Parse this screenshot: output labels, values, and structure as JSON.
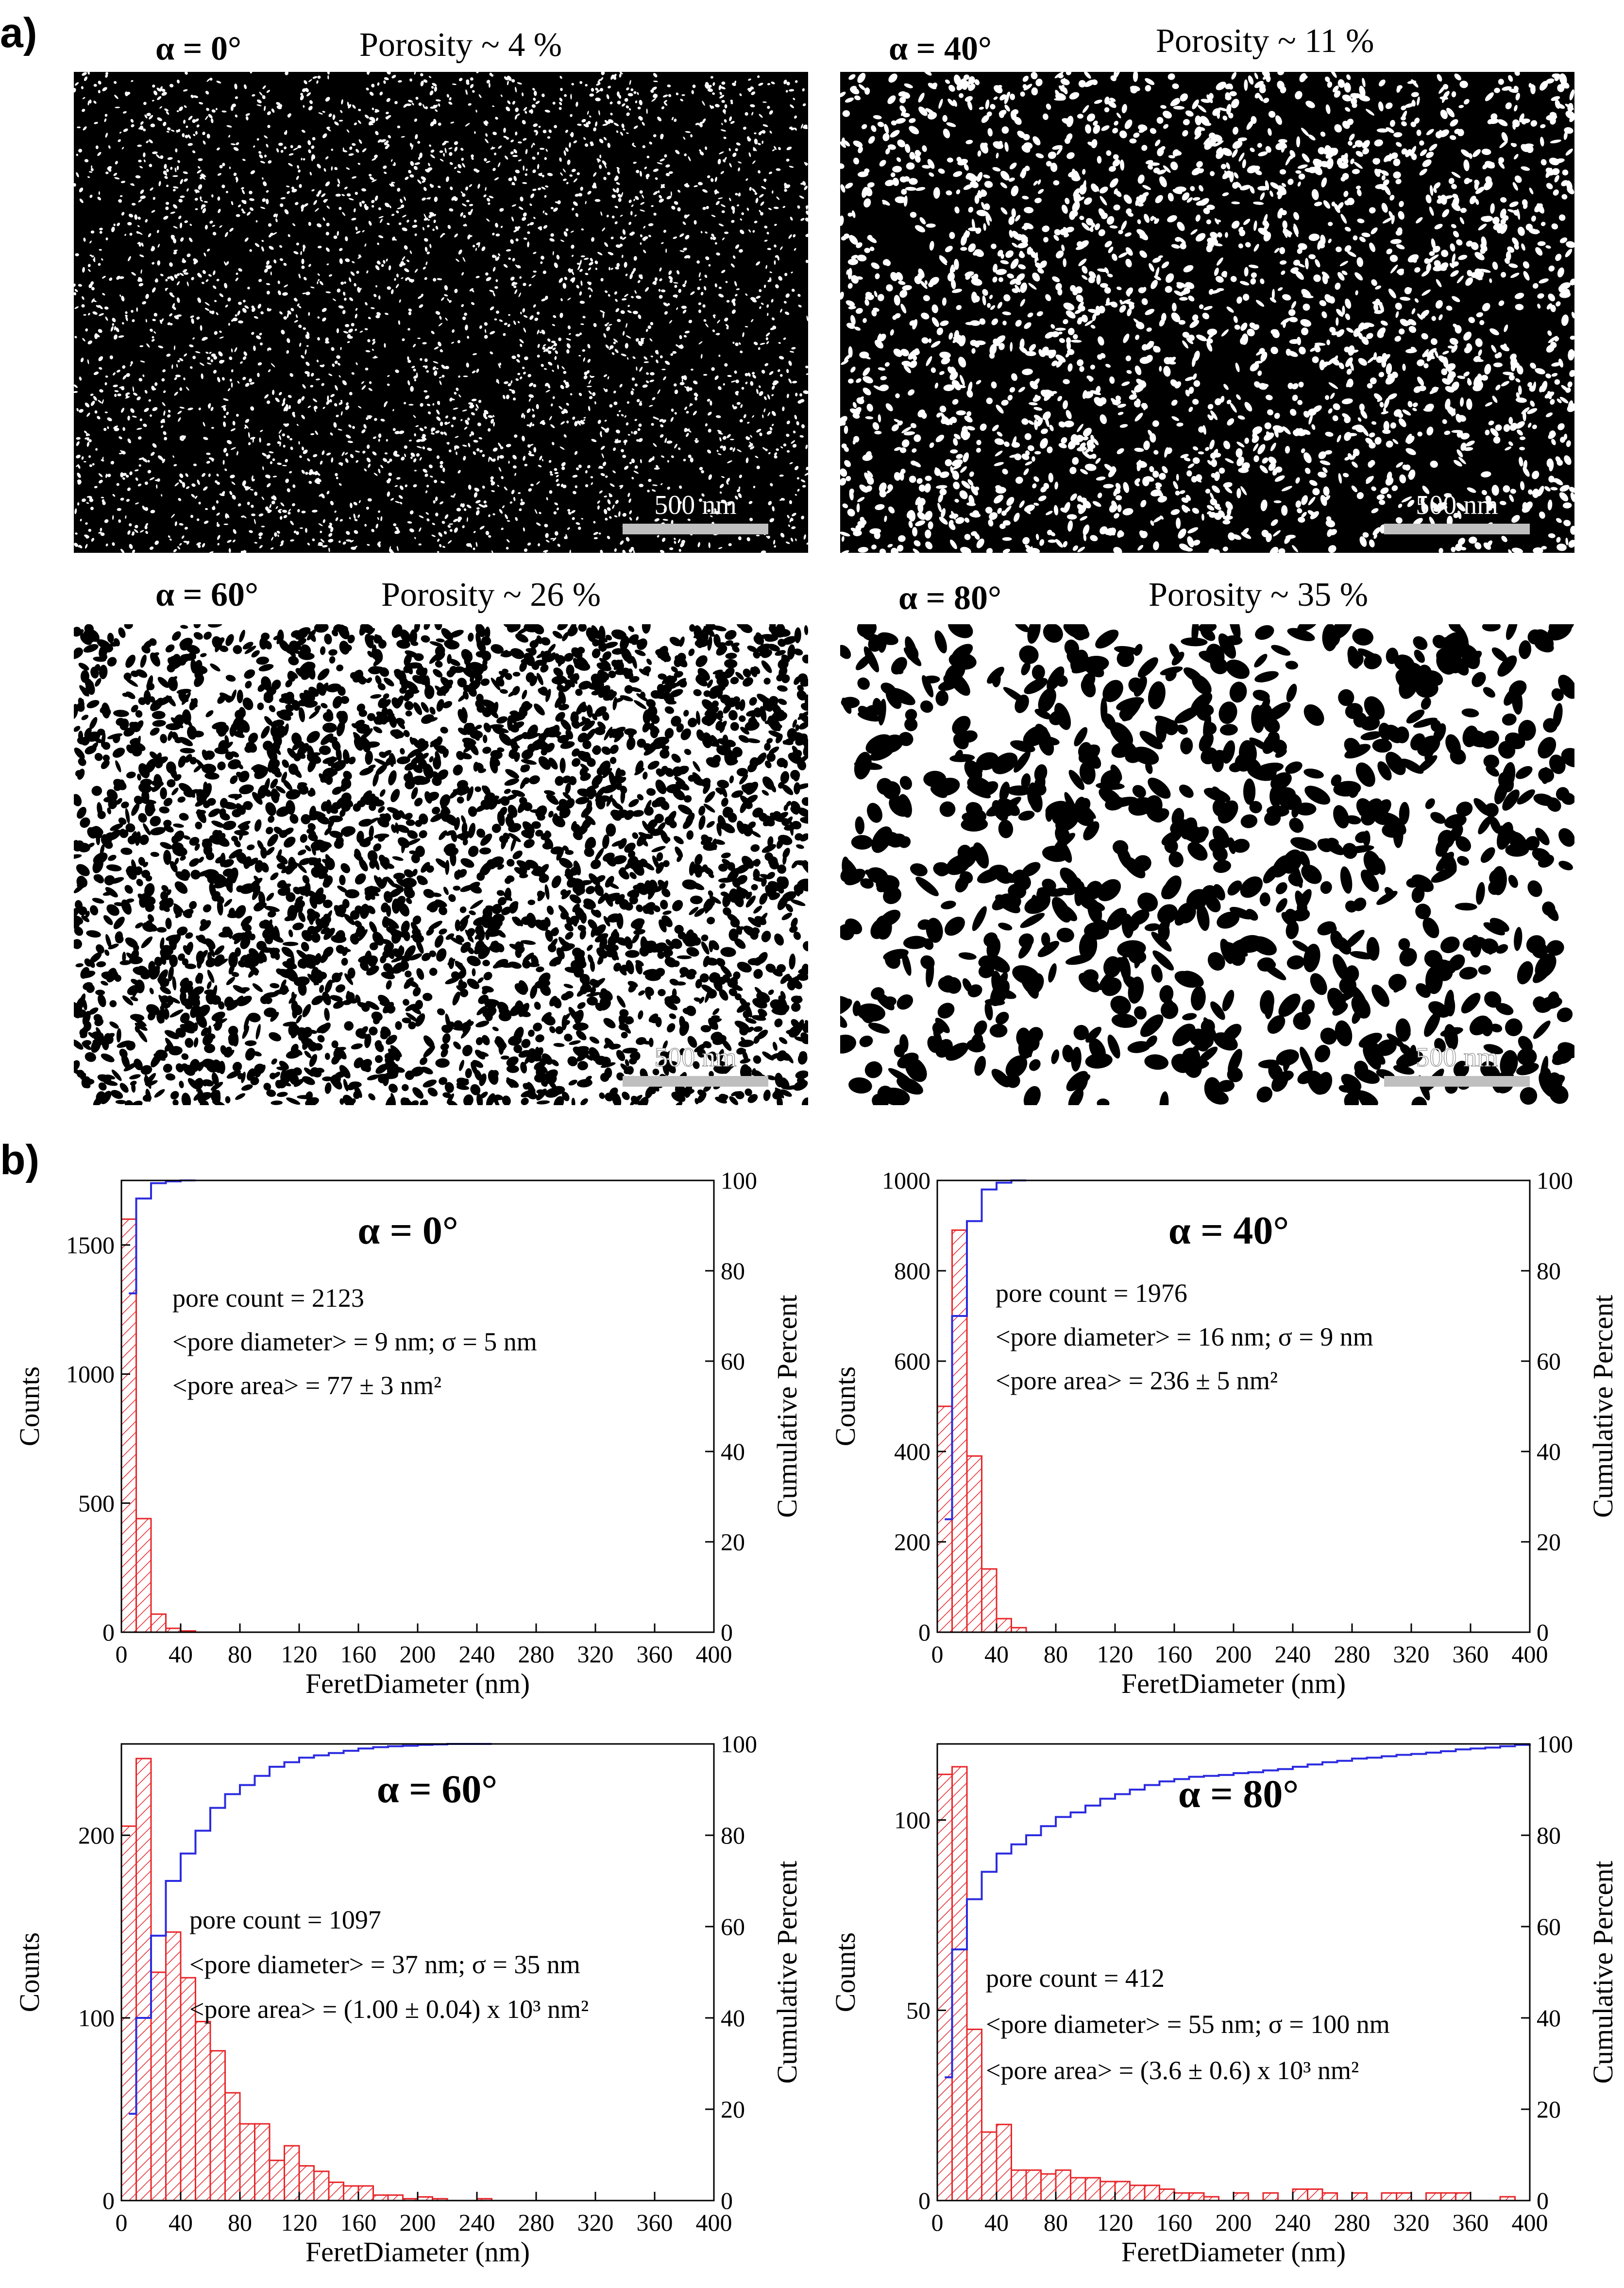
{
  "panel_a": {
    "label": "a)",
    "images": [
      {
        "angle_label": "α = 0°",
        "porosity_label": "Porosity ~ 4 %",
        "porosity": 0.04,
        "scale_bar": "500 nm"
      },
      {
        "angle_label": "α = 40°",
        "porosity_label": "Porosity ~ 11 %",
        "porosity": 0.11,
        "scale_bar": "500 nm"
      },
      {
        "angle_label": "α = 60°",
        "porosity_label": "Porosity ~ 26 %",
        "porosity": 0.26,
        "scale_bar": "500 nm"
      },
      {
        "angle_label": "α = 80°",
        "porosity_label": "Porosity ~ 35 %",
        "porosity": 0.35,
        "scale_bar": "500 nm"
      }
    ]
  },
  "panel_b": {
    "label": "b)"
  },
  "colors": {
    "bars": "#e8262a",
    "cumulative": "#2b2be0",
    "axis": "#000000"
  },
  "chart_data": [
    {
      "type": "bar",
      "title": "α = 0°",
      "xlabel": "FeretDiameter (nm)",
      "ylabel": "Counts",
      "y2label": "Cumulative Percent",
      "xlim": [
        0,
        400
      ],
      "ylim": [
        0,
        1750
      ],
      "y2lim": [
        0,
        100
      ],
      "xticks": [
        0,
        40,
        80,
        120,
        160,
        200,
        240,
        280,
        320,
        360,
        400
      ],
      "yticks": [
        0,
        500,
        1000,
        1500
      ],
      "y2ticks": [
        0,
        20,
        40,
        60,
        80,
        100
      ],
      "bin_width": 10,
      "bins_start": [
        0,
        10,
        20,
        30,
        40
      ],
      "values": [
        1600,
        440,
        70,
        15,
        5
      ],
      "cumulative": {
        "x": [
          5,
          10,
          20,
          30,
          40,
          50
        ],
        "y": [
          75,
          96,
          99.4,
          99.8,
          100,
          100
        ]
      },
      "annotations": [
        "pore count = 2123",
        "<pore diameter> = 9 nm; σ = 5 nm",
        "<pore area> = 77 ± 3 nm²"
      ],
      "grid": false,
      "legend": "none"
    },
    {
      "type": "bar",
      "title": "α = 40°",
      "xlabel": "FeretDiameter (nm)",
      "ylabel": "Counts",
      "y2label": "Cumulative Percent",
      "xlim": [
        0,
        400
      ],
      "ylim": [
        0,
        1000
      ],
      "y2lim": [
        0,
        100
      ],
      "xticks": [
        0,
        40,
        80,
        120,
        160,
        200,
        240,
        280,
        320,
        360,
        400
      ],
      "yticks": [
        0,
        200,
        400,
        600,
        800,
        1000
      ],
      "y2ticks": [
        0,
        20,
        40,
        60,
        80,
        100
      ],
      "bin_width": 10,
      "bins_start": [
        0,
        10,
        20,
        30,
        40,
        50
      ],
      "values": [
        500,
        890,
        390,
        140,
        30,
        10
      ],
      "cumulative": {
        "x": [
          5,
          10,
          20,
          30,
          40,
          50,
          60
        ],
        "y": [
          25,
          70,
          91,
          98,
          99.5,
          100,
          100
        ]
      },
      "annotations": [
        "pore count = 1976",
        "<pore diameter> = 16 nm; σ = 9 nm",
        "<pore area> = 236 ± 5 nm²"
      ],
      "grid": false,
      "legend": "none"
    },
    {
      "type": "bar",
      "title": "α = 60°",
      "xlabel": "FeretDiameter (nm)",
      "ylabel": "Counts",
      "y2label": "Cumulative Percent",
      "xlim": [
        0,
        400
      ],
      "ylim": [
        0,
        250
      ],
      "y2lim": [
        0,
        100
      ],
      "xticks": [
        0,
        40,
        80,
        120,
        160,
        200,
        240,
        280,
        320,
        360,
        400
      ],
      "yticks": [
        0,
        100,
        200
      ],
      "y2ticks": [
        0,
        20,
        40,
        60,
        80,
        100
      ],
      "bin_width": 10,
      "bins_start": [
        0,
        10,
        20,
        30,
        40,
        50,
        60,
        70,
        80,
        90,
        100,
        110,
        120,
        130,
        140,
        150,
        160,
        170,
        180,
        190,
        200,
        210,
        220,
        230,
        240,
        250
      ],
      "values": [
        205,
        242,
        125,
        147,
        122,
        98,
        82,
        59,
        42,
        42,
        22,
        30,
        19,
        16,
        10,
        8,
        8,
        3,
        3,
        1,
        2,
        1,
        0,
        0,
        1,
        0
      ],
      "cumulative": {
        "x": [
          5,
          10,
          20,
          30,
          40,
          50,
          60,
          70,
          80,
          90,
          100,
          110,
          120,
          130,
          140,
          150,
          160,
          170,
          180,
          190,
          200,
          210,
          220,
          230,
          240,
          250
        ],
        "y": [
          19,
          40,
          58,
          70,
          76,
          81,
          86,
          89,
          91,
          93,
          95,
          96,
          97,
          97.5,
          98,
          98.5,
          99,
          99.3,
          99.5,
          99.6,
          99.8,
          99.9,
          100,
          100,
          100,
          100
        ]
      },
      "annotations": [
        "pore count = 1097",
        "<pore diameter> = 37 nm; σ = 35 nm",
        "<pore area> = (1.00 ± 0.04) x 10³ nm²"
      ],
      "grid": false,
      "legend": "none"
    },
    {
      "type": "bar",
      "title": "α = 80°",
      "xlabel": "FeretDiameter (nm)",
      "ylabel": "Counts",
      "y2label": "Cumulative Percent",
      "xlim": [
        0,
        400
      ],
      "ylim": [
        0,
        120
      ],
      "y2lim": [
        0,
        100
      ],
      "xticks": [
        0,
        40,
        80,
        120,
        160,
        200,
        240,
        280,
        320,
        360,
        400
      ],
      "yticks": [
        0,
        50,
        100
      ],
      "y2ticks": [
        0,
        20,
        40,
        60,
        80,
        100
      ],
      "bin_width": 10,
      "bins_start": [
        0,
        10,
        20,
        30,
        40,
        50,
        60,
        70,
        80,
        90,
        100,
        110,
        120,
        130,
        140,
        150,
        160,
        170,
        180,
        190,
        200,
        210,
        220,
        230,
        240,
        250,
        260,
        270,
        280,
        290,
        300,
        310,
        320,
        330,
        340,
        350,
        360,
        370,
        380,
        390
      ],
      "values": [
        112,
        114,
        45,
        18,
        20,
        8,
        8,
        7,
        8,
        6,
        6,
        5,
        5,
        4,
        4,
        3,
        2,
        2,
        1,
        0,
        2,
        0,
        2,
        0,
        3,
        3,
        2,
        0,
        2,
        0,
        2,
        2,
        0,
        2,
        2,
        2,
        0,
        0,
        1,
        0
      ],
      "cumulative": {
        "x": [
          5,
          10,
          20,
          30,
          40,
          50,
          60,
          70,
          80,
          90,
          100,
          110,
          120,
          130,
          140,
          150,
          160,
          170,
          180,
          190,
          200,
          210,
          220,
          230,
          240,
          250,
          260,
          270,
          280,
          290,
          300,
          310,
          320,
          330,
          340,
          350,
          360,
          370,
          380,
          390,
          400
        ],
        "y": [
          27,
          55,
          66,
          72,
          76,
          78,
          80,
          82,
          84,
          85,
          86.5,
          88,
          89,
          90,
          91,
          91.8,
          92.3,
          92.8,
          93,
          93.2,
          93.6,
          93.8,
          94.2,
          94.5,
          95,
          95.5,
          96,
          96.3,
          96.8,
          97,
          97.3,
          97.6,
          97.8,
          98.1,
          98.4,
          98.8,
          99,
          99.2,
          99.5,
          99.8,
          100
        ]
      },
      "annotations": [
        "pore count = 412",
        "<pore diameter> = 55 nm; σ = 100 nm",
        "<pore area> = (3.6 ± 0.6) x 10³ nm²"
      ],
      "grid": false,
      "legend": "none"
    }
  ]
}
